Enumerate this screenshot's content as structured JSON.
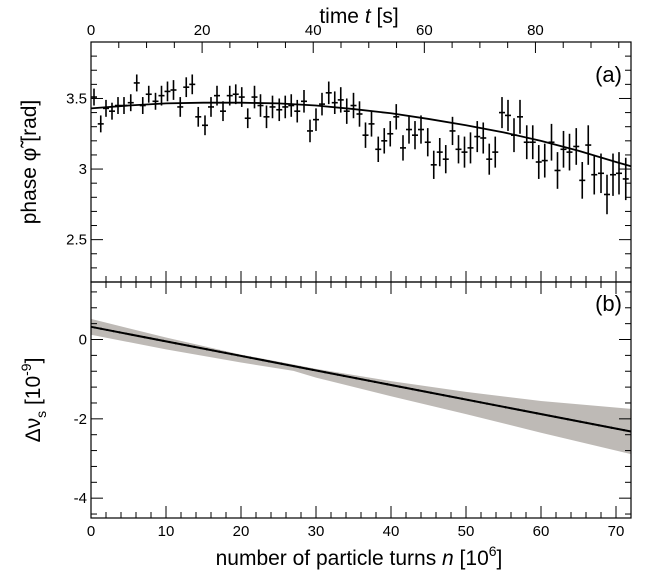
{
  "chart_data": [
    {
      "panel_label": "(a)",
      "type": "scatter",
      "top_axis": {
        "label": "time t [s]",
        "label_parts": [
          "time ",
          "t",
          " [s]"
        ],
        "ticks": [
          "0",
          "20",
          "40",
          "60",
          "80"
        ],
        "tick_values": [
          0,
          20,
          40,
          60,
          80
        ],
        "range": [
          0,
          97.2
        ]
      },
      "ylabel": "phase φ̃ [rad]",
      "ylabel_parts": [
        "phase ",
        "φ̃",
        " [rad]"
      ],
      "ylim": [
        2.2,
        3.9
      ],
      "y_ticks": [
        "2.5",
        "3",
        "3.5"
      ],
      "y_tick_values": [
        2.5,
        3.0,
        3.5
      ],
      "xlim": [
        0,
        72
      ],
      "grid": false,
      "series": [
        {
          "kind": "data-with-error-bars",
          "x": [
            0.4,
            1.3,
            2.0,
            2.8,
            3.6,
            4.4,
            5.3,
            6.1,
            6.9,
            7.7,
            8.6,
            9.4,
            10.2,
            11.0,
            11.9,
            12.7,
            13.5,
            14.3,
            15.2,
            16.0,
            16.8,
            17.6,
            18.5,
            19.3,
            20.1,
            20.9,
            21.8,
            22.6,
            23.4,
            24.2,
            25.1,
            25.9,
            26.7,
            27.5,
            28.4,
            29.2,
            30.0,
            30.8,
            31.7,
            32.5,
            33.3,
            34.1,
            35.0,
            35.8,
            36.6,
            37.4,
            38.3,
            39.1,
            39.9,
            40.7,
            41.6,
            42.4,
            43.2,
            44.0,
            44.9,
            45.7,
            46.5,
            47.3,
            48.2,
            49.0,
            49.8,
            50.6,
            51.5,
            52.3,
            53.1,
            53.9,
            54.8,
            55.6,
            56.4,
            57.2,
            58.1,
            58.9,
            59.7,
            60.5,
            61.4,
            62.2,
            63.0,
            63.8,
            64.7,
            65.5,
            66.3,
            67.1,
            68.0,
            68.8,
            69.6,
            70.4,
            71.3
          ],
          "y": [
            3.51,
            3.32,
            3.43,
            3.41,
            3.45,
            3.45,
            3.47,
            3.61,
            3.45,
            3.53,
            3.48,
            3.52,
            3.55,
            3.56,
            3.44,
            3.58,
            3.6,
            3.37,
            3.31,
            3.44,
            3.52,
            3.41,
            3.52,
            3.53,
            3.51,
            3.36,
            3.51,
            3.45,
            3.37,
            3.44,
            3.42,
            3.44,
            3.45,
            3.41,
            3.48,
            3.27,
            3.35,
            3.46,
            3.54,
            3.47,
            3.49,
            3.41,
            3.45,
            3.39,
            3.24,
            3.32,
            3.14,
            3.2,
            3.25,
            3.37,
            3.15,
            3.28,
            3.24,
            3.28,
            3.19,
            3.03,
            3.12,
            3.07,
            3.27,
            3.14,
            3.12,
            3.15,
            3.23,
            3.22,
            3.07,
            3.12,
            3.4,
            3.38,
            3.24,
            3.37,
            3.19,
            3.19,
            3.05,
            3.06,
            3.19,
            2.99,
            3.14,
            3.12,
            3.16,
            2.92,
            3.17,
            2.96,
            2.97,
            2.82,
            2.96,
            2.97,
            2.93
          ],
          "yerr": [
            0.06,
            0.06,
            0.06,
            0.06,
            0.06,
            0.06,
            0.06,
            0.06,
            0.06,
            0.06,
            0.06,
            0.07,
            0.07,
            0.07,
            0.07,
            0.07,
            0.07,
            0.07,
            0.07,
            0.07,
            0.07,
            0.07,
            0.07,
            0.07,
            0.07,
            0.07,
            0.08,
            0.08,
            0.08,
            0.08,
            0.08,
            0.08,
            0.08,
            0.08,
            0.08,
            0.08,
            0.08,
            0.08,
            0.08,
            0.08,
            0.09,
            0.09,
            0.09,
            0.09,
            0.09,
            0.09,
            0.09,
            0.09,
            0.09,
            0.09,
            0.09,
            0.1,
            0.1,
            0.1,
            0.1,
            0.1,
            0.1,
            0.1,
            0.1,
            0.1,
            0.11,
            0.11,
            0.11,
            0.11,
            0.11,
            0.11,
            0.11,
            0.11,
            0.12,
            0.12,
            0.12,
            0.12,
            0.12,
            0.12,
            0.13,
            0.13,
            0.13,
            0.13,
            0.13,
            0.13,
            0.14,
            0.14,
            0.14,
            0.14,
            0.15,
            0.15,
            0.15
          ],
          "xerr": 0.4
        },
        {
          "kind": "fit-curve",
          "x": [
            0,
            5,
            10,
            15,
            20,
            25,
            30,
            35,
            40,
            45,
            50,
            55,
            60,
            65,
            70,
            72
          ],
          "y": [
            3.43,
            3.45,
            3.465,
            3.47,
            3.47,
            3.465,
            3.45,
            3.425,
            3.395,
            3.355,
            3.31,
            3.26,
            3.2,
            3.13,
            3.05,
            3.02
          ]
        }
      ]
    },
    {
      "panel_label": "(b)",
      "type": "line",
      "xlabel": "number of particle turns n [10⁶]",
      "xlabel_parts": [
        "number of particle turns ",
        "n",
        " [10",
        "6",
        "]"
      ],
      "xlim": [
        0,
        72
      ],
      "x_ticks": [
        "0",
        "10",
        "20",
        "30",
        "40",
        "50",
        "60",
        "70"
      ],
      "x_tick_values": [
        0,
        10,
        20,
        30,
        40,
        50,
        60,
        70
      ],
      "ylabel": "Δν_s [10⁻⁹]",
      "ylabel_parts": [
        "Δν",
        "s",
        " [10",
        "-9",
        "]"
      ],
      "ylim": [
        -4.5,
        1.45
      ],
      "y_ticks": [
        "-4",
        "-2",
        "0"
      ],
      "y_tick_values": [
        -4,
        -2,
        0
      ],
      "grid": false,
      "series": [
        {
          "kind": "central-line",
          "x": [
            0,
            72
          ],
          "y": [
            0.32,
            -2.32
          ]
        },
        {
          "kind": "uncertainty-band",
          "x": [
            0,
            10,
            20,
            27,
            30,
            40,
            50,
            60,
            72
          ],
          "upper": [
            0.52,
            0.05,
            -0.38,
            -0.63,
            -0.74,
            -1.05,
            -1.32,
            -1.55,
            -1.75
          ],
          "lower": [
            0.12,
            -0.25,
            -0.58,
            -0.79,
            -0.96,
            -1.43,
            -1.88,
            -2.35,
            -2.89
          ],
          "color": "#a8a39e"
        }
      ]
    }
  ]
}
